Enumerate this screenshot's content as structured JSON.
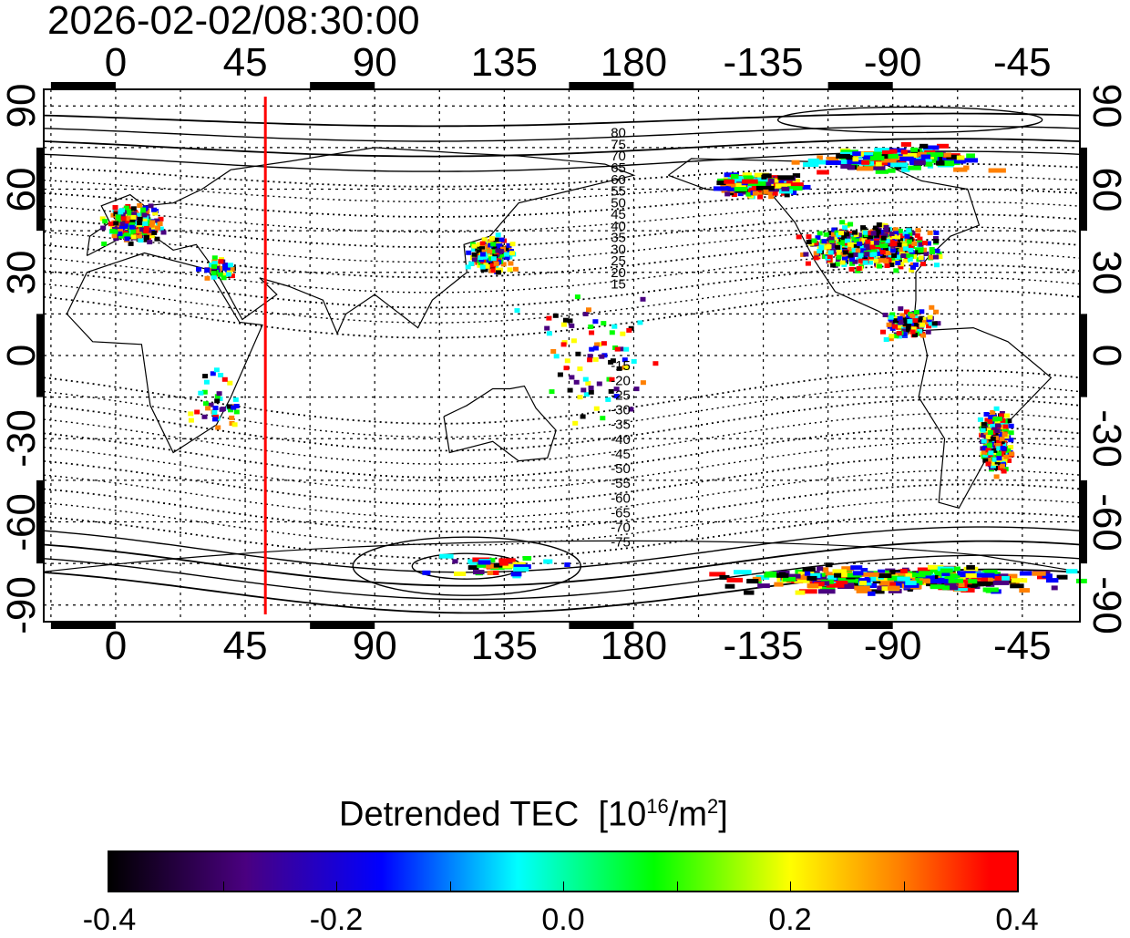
{
  "timestamp": "2026-02-02/08:30:00",
  "map": {
    "type": "scatter-map",
    "lon_range": [
      -25,
      335
    ],
    "lat_range": [
      -96,
      96
    ],
    "top_lon_ticks": [
      "0",
      "45",
      "90",
      "135",
      "180",
      "-135",
      "-90",
      "-45"
    ],
    "bottom_lon_ticks": [
      "0",
      "45",
      "90",
      "135",
      "180",
      "-135",
      "-90",
      "-45"
    ],
    "left_lat_ticks": [
      "90",
      "60",
      "30",
      "0",
      "-30",
      "-60",
      "-90"
    ],
    "right_lat_ticks": [
      "90",
      "60",
      "30",
      "0",
      "-30",
      "-60",
      "-90"
    ],
    "tick_lon_values": [
      0,
      45,
      90,
      135,
      180,
      225,
      270,
      315
    ],
    "tick_lat_values": [
      90,
      60,
      30,
      0,
      -30,
      -60,
      -90
    ],
    "marker_line_lon": 52,
    "marker_line_color": "#ff0000",
    "mag_lat_labels_north": [
      "80",
      "75",
      "70",
      "65",
      "60",
      "55",
      "50",
      "45",
      "40",
      "35",
      "30",
      "25",
      "20",
      "15"
    ],
    "mag_lat_labels_south": [
      "-15",
      "-20",
      "-25",
      "-30",
      "-35",
      "-40",
      "-45",
      "-50",
      "-55",
      "-60",
      "-65",
      "-70",
      "-75"
    ],
    "clusters": [
      {
        "name": "europe",
        "lon": 5,
        "lat": 48,
        "dlon": 12,
        "dlat": 8,
        "n": 260
      },
      {
        "name": "japan-china",
        "lon": 130,
        "lat": 37,
        "dlon": 10,
        "dlat": 8,
        "n": 200
      },
      {
        "name": "north-america",
        "lon": 262,
        "lat": 40,
        "dlon": 28,
        "dlat": 10,
        "n": 700
      },
      {
        "name": "alaska-canada",
        "lon": 222,
        "lat": 62,
        "dlon": 18,
        "dlat": 5,
        "n": 220
      },
      {
        "name": "arctic",
        "lon": 270,
        "lat": 72,
        "dlon": 40,
        "dlat": 6,
        "n": 150
      },
      {
        "name": "central-america",
        "lon": 275,
        "lat": 12,
        "dlon": 12,
        "dlat": 8,
        "n": 120
      },
      {
        "name": "south-america",
        "lon": 305,
        "lat": -30,
        "dlon": 7,
        "dlat": 14,
        "n": 320
      },
      {
        "name": "antarctica",
        "lon": 270,
        "lat": -80,
        "dlon": 70,
        "dlat": 6,
        "n": 320
      },
      {
        "name": "scattered-south",
        "lon": 130,
        "lat": -75,
        "dlon": 30,
        "dlat": 5,
        "n": 40
      },
      {
        "name": "middle-east",
        "lon": 35,
        "lat": 32,
        "dlon": 8,
        "dlat": 5,
        "n": 60
      },
      {
        "name": "africa",
        "lon": 35,
        "lat": -15,
        "dlon": 15,
        "dlat": 15,
        "n": 40
      },
      {
        "name": "pacific",
        "lon": 165,
        "lat": 0,
        "dlon": 30,
        "dlat": 30,
        "n": 80
      }
    ]
  },
  "colorbar": {
    "title": "Detrended TEC",
    "unit_prefix": "[10",
    "unit_exp1": "16",
    "unit_mid": "/m",
    "unit_exp2": "2",
    "unit_suffix": "]",
    "min": -0.4,
    "max": 0.4,
    "tick_labels": [
      "-0.4",
      "-0.2",
      "0.0",
      "0.2",
      "0.4"
    ],
    "colors": [
      "#000000",
      "#4a0080",
      "#0000ff",
      "#00ffff",
      "#00ff00",
      "#ffff00",
      "#ff8000",
      "#ff0000"
    ]
  }
}
